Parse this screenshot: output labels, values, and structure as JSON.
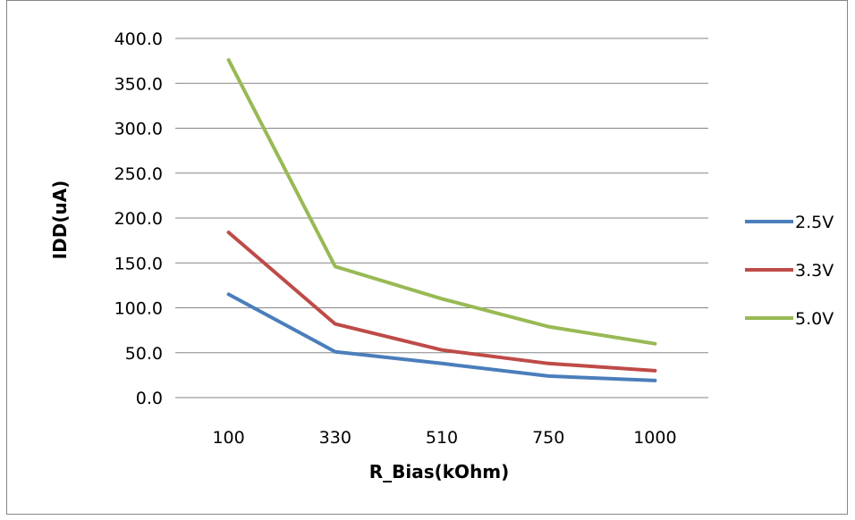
{
  "chart_data": {
    "type": "line",
    "title": "",
    "xlabel": "R_Bias(kOhm)",
    "ylabel": "IDD(uA)",
    "categories": [
      "100",
      "330",
      "510",
      "750",
      "1000"
    ],
    "yticks": [
      "0.0",
      "50.0",
      "100.0",
      "150.0",
      "200.0",
      "250.0",
      "300.0",
      "350.0",
      "400.0"
    ],
    "ylim": [
      0,
      400
    ],
    "grid": "horizontal",
    "legend_position": "right",
    "series": [
      {
        "name": "2.5V",
        "color": "#4a7ebb",
        "values": [
          115,
          51,
          38,
          24,
          19
        ]
      },
      {
        "name": "3.3V",
        "color": "#be4b48",
        "values": [
          184,
          82,
          53,
          38,
          30
        ]
      },
      {
        "name": "5.0V",
        "color": "#98b954",
        "values": [
          376,
          146,
          110,
          79,
          60
        ]
      }
    ]
  }
}
